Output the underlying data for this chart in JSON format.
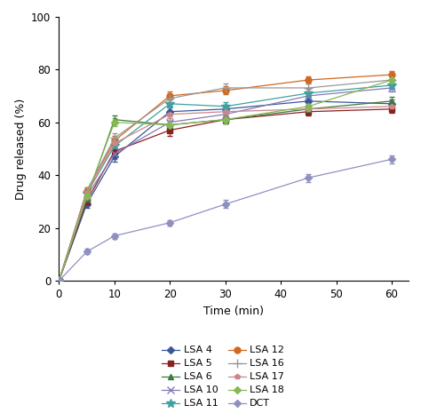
{
  "time": [
    0,
    5,
    10,
    20,
    30,
    45,
    60
  ],
  "series": {
    "LSA 4": {
      "y": [
        0,
        29,
        47,
        64,
        65,
        68,
        67
      ],
      "yerr": [
        0,
        1.5,
        2.0,
        1.5,
        1.5,
        1.5,
        1.5
      ],
      "color": "#3a5799",
      "marker": "D",
      "ms": 4
    },
    "LSA 5": {
      "y": [
        0,
        30,
        49,
        57,
        61,
        64,
        65
      ],
      "yerr": [
        0,
        1.5,
        2.0,
        2.0,
        1.5,
        1.5,
        1.5
      ],
      "color": "#8b2020",
      "marker": "s",
      "ms": 4
    },
    "LSA 6": {
      "y": [
        0,
        31,
        61,
        59,
        61,
        65,
        68
      ],
      "yerr": [
        0,
        1.5,
        1.5,
        1.5,
        1.5,
        1.5,
        1.5
      ],
      "color": "#3d7a3d",
      "marker": "^",
      "ms": 5
    },
    "LSA 10": {
      "y": [
        0,
        32,
        48,
        60,
        63,
        70,
        73
      ],
      "yerr": [
        0,
        1.5,
        2.0,
        1.5,
        1.5,
        1.5,
        1.5
      ],
      "color": "#8878b8",
      "marker": "x",
      "ms": 6
    },
    "LSA 11": {
      "y": [
        0,
        33,
        51,
        67,
        66,
        71,
        74
      ],
      "yerr": [
        0,
        1.5,
        2.0,
        1.5,
        1.5,
        1.5,
        1.5
      ],
      "color": "#40a0a0",
      "marker": "*",
      "ms": 7
    },
    "LSA 12": {
      "y": [
        0,
        34,
        53,
        70,
        72,
        76,
        78
      ],
      "yerr": [
        0,
        1.5,
        2.0,
        1.5,
        1.5,
        1.5,
        1.5
      ],
      "color": "#d06820",
      "marker": "o",
      "ms": 5
    },
    "LSA 16": {
      "y": [
        0,
        34,
        54,
        69,
        73,
        73,
        76
      ],
      "yerr": [
        0,
        1.5,
        2.0,
        1.5,
        1.5,
        1.5,
        1.5
      ],
      "color": "#999999",
      "marker": "+",
      "ms": 7
    },
    "LSA 17": {
      "y": [
        0,
        33,
        52,
        63,
        64,
        65,
        66
      ],
      "yerr": [
        0,
        1.5,
        2.0,
        1.5,
        1.5,
        1.5,
        1.5
      ],
      "color": "#cc8888",
      "marker": "p",
      "ms": 4
    },
    "LSA 18": {
      "y": [
        0,
        32,
        60,
        59,
        61,
        66,
        76
      ],
      "yerr": [
        0,
        1.5,
        1.5,
        1.5,
        1.5,
        1.5,
        1.5
      ],
      "color": "#88b855",
      "marker": "D",
      "ms": 4
    },
    "DCT": {
      "y": [
        0,
        11,
        17,
        22,
        29,
        39,
        46
      ],
      "yerr": [
        0,
        1.0,
        1.0,
        1.0,
        1.5,
        1.5,
        1.5
      ],
      "color": "#9090c0",
      "marker": "D",
      "ms": 4
    }
  },
  "xlabel": "Time (min)",
  "ylabel": "Drug released (%)",
  "xlim": [
    0,
    63
  ],
  "ylim": [
    0,
    100
  ],
  "xticks": [
    0,
    10,
    20,
    30,
    40,
    50,
    60
  ],
  "yticks": [
    0,
    20,
    40,
    60,
    80,
    100
  ],
  "legend_order": [
    "LSA 4",
    "LSA 5",
    "LSA 6",
    "LSA 10",
    "LSA 11",
    "LSA 12",
    "LSA 16",
    "LSA 17",
    "LSA 18",
    "DCT"
  ],
  "figsize": [
    4.74,
    4.65
  ],
  "dpi": 100
}
